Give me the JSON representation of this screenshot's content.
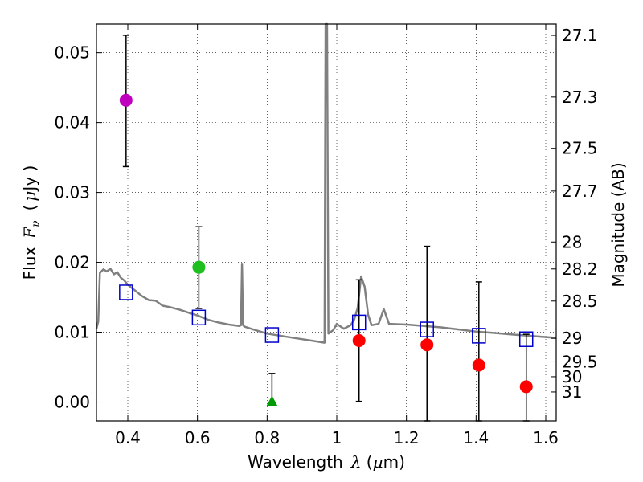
{
  "chart_data": {
    "type": "scatter",
    "xlabel": "Wavelength",
    "xlabel_math": "λ",
    "xlabel_unit_open": " (",
    "xlabel_unit_mu": "μ",
    "xlabel_unit_close": "m)",
    "ylabel": "Flux",
    "ylabel_math": "F",
    "ylabel_math_sub": "ν",
    "ylabel_unit_open": "(",
    "ylabel_unit_mu": "μ",
    "ylabel_unit_close": "Jy )",
    "y2label": "Magnitude (AB)",
    "xlim": [
      0.31,
      1.63
    ],
    "ylim": [
      -0.0027,
      0.0541
    ],
    "grid": true,
    "x_ticks": [
      0.4,
      0.6,
      0.8,
      1.0,
      1.2,
      1.4,
      1.6
    ],
    "x_tick_labels": [
      "0.4",
      "0.6",
      "0.8",
      "1",
      "1.2",
      "1.4",
      "1.6"
    ],
    "y_ticks": [
      0.0,
      0.01,
      0.02,
      0.03,
      0.04,
      0.05
    ],
    "y_tick_labels": [
      "0.00",
      "0.01",
      "0.02",
      "0.03",
      "0.04",
      "0.05"
    ],
    "y2_ticks": [
      27.1,
      27.3,
      27.5,
      27.7,
      28,
      28.2,
      28.5,
      29,
      29.5,
      30,
      31
    ],
    "y2_tick_labels": [
      "27.1",
      "27.3",
      "27.5",
      "27.7",
      "28",
      "28.2",
      "28.5",
      "29",
      "29.5",
      "30",
      "31"
    ],
    "points": [
      {
        "name": "magenta-circle",
        "x": 0.395,
        "y": 0.0432,
        "err_lo": 0.0337,
        "err_hi": 0.0525,
        "marker": "circle",
        "color": "#bf00bf"
      },
      {
        "name": "green-circle",
        "x": 0.604,
        "y": 0.0193,
        "err_lo": 0.0134,
        "err_hi": 0.0251,
        "marker": "circle",
        "color": "#1fbf1f"
      },
      {
        "name": "green-triangle",
        "x": 0.814,
        "y": 0.0,
        "err_lo": 0.0,
        "err_hi": 0.0041,
        "marker": "triangle",
        "color": "#009900"
      },
      {
        "name": "red-circle-1",
        "x": 1.064,
        "y": 0.0088,
        "err_lo": 0.0001,
        "err_hi": 0.0175,
        "marker": "circle",
        "color": "#ff0000"
      },
      {
        "name": "red-circle-2",
        "x": 1.259,
        "y": 0.0082,
        "err_lo": -0.0027,
        "err_hi": 0.0223,
        "marker": "circle",
        "color": "#ff0000"
      },
      {
        "name": "red-circle-3",
        "x": 1.408,
        "y": 0.0053,
        "err_lo": -0.0027,
        "err_hi": 0.0172,
        "marker": "circle",
        "color": "#ff0000"
      },
      {
        "name": "red-circle-4",
        "x": 1.544,
        "y": 0.0022,
        "err_lo": -0.0027,
        "err_hi": 0.0097,
        "marker": "circle",
        "color": "#ff0000"
      }
    ],
    "model_points": [
      {
        "x": 0.395,
        "y": 0.0157
      },
      {
        "x": 0.604,
        "y": 0.0121
      },
      {
        "x": 0.814,
        "y": 0.0096
      },
      {
        "x": 1.064,
        "y": 0.0114
      },
      {
        "x": 1.259,
        "y": 0.0104
      },
      {
        "x": 1.408,
        "y": 0.0095
      },
      {
        "x": 1.544,
        "y": 0.009
      }
    ],
    "model_square_color": "#0000cc",
    "spectrum_color": "#808080",
    "spectrum": [
      [
        0.31,
        0.0105
      ],
      [
        0.315,
        0.0115
      ],
      [
        0.32,
        0.0185
      ],
      [
        0.33,
        0.019
      ],
      [
        0.34,
        0.0187
      ],
      [
        0.35,
        0.0191
      ],
      [
        0.36,
        0.0183
      ],
      [
        0.37,
        0.0186
      ],
      [
        0.38,
        0.0178
      ],
      [
        0.39,
        0.0174
      ],
      [
        0.4,
        0.0168
      ],
      [
        0.42,
        0.016
      ],
      [
        0.44,
        0.0152
      ],
      [
        0.46,
        0.0146
      ],
      [
        0.48,
        0.0145
      ],
      [
        0.5,
        0.0138
      ],
      [
        0.52,
        0.0136
      ],
      [
        0.55,
        0.0132
      ],
      [
        0.58,
        0.0127
      ],
      [
        0.6,
        0.0124
      ],
      [
        0.63,
        0.0118
      ],
      [
        0.66,
        0.0114
      ],
      [
        0.69,
        0.0111
      ],
      [
        0.72,
        0.0109
      ],
      [
        0.725,
        0.011
      ],
      [
        0.728,
        0.0197
      ],
      [
        0.731,
        0.011
      ],
      [
        0.735,
        0.0108
      ],
      [
        0.76,
        0.0104
      ],
      [
        0.8,
        0.0098
      ],
      [
        0.85,
        0.0094
      ],
      [
        0.9,
        0.009
      ],
      [
        0.94,
        0.0087
      ],
      [
        0.965,
        0.0085
      ],
      [
        0.968,
        0.0541
      ],
      [
        0.972,
        0.0541
      ],
      [
        0.976,
        0.0098
      ],
      [
        0.99,
        0.0103
      ],
      [
        1.0,
        0.0112
      ],
      [
        1.02,
        0.0105
      ],
      [
        1.04,
        0.011
      ],
      [
        1.05,
        0.0118
      ],
      [
        1.06,
        0.0135
      ],
      [
        1.07,
        0.018
      ],
      [
        1.08,
        0.0165
      ],
      [
        1.09,
        0.0125
      ],
      [
        1.1,
        0.011
      ],
      [
        1.12,
        0.0112
      ],
      [
        1.135,
        0.0133
      ],
      [
        1.15,
        0.0112
      ],
      [
        1.2,
        0.0111
      ],
      [
        1.25,
        0.0109
      ],
      [
        1.3,
        0.0107
      ],
      [
        1.35,
        0.0104
      ],
      [
        1.4,
        0.0101
      ],
      [
        1.45,
        0.0099
      ],
      [
        1.5,
        0.0097
      ],
      [
        1.55,
        0.0095
      ],
      [
        1.6,
        0.0093
      ],
      [
        1.63,
        0.0092
      ]
    ]
  }
}
